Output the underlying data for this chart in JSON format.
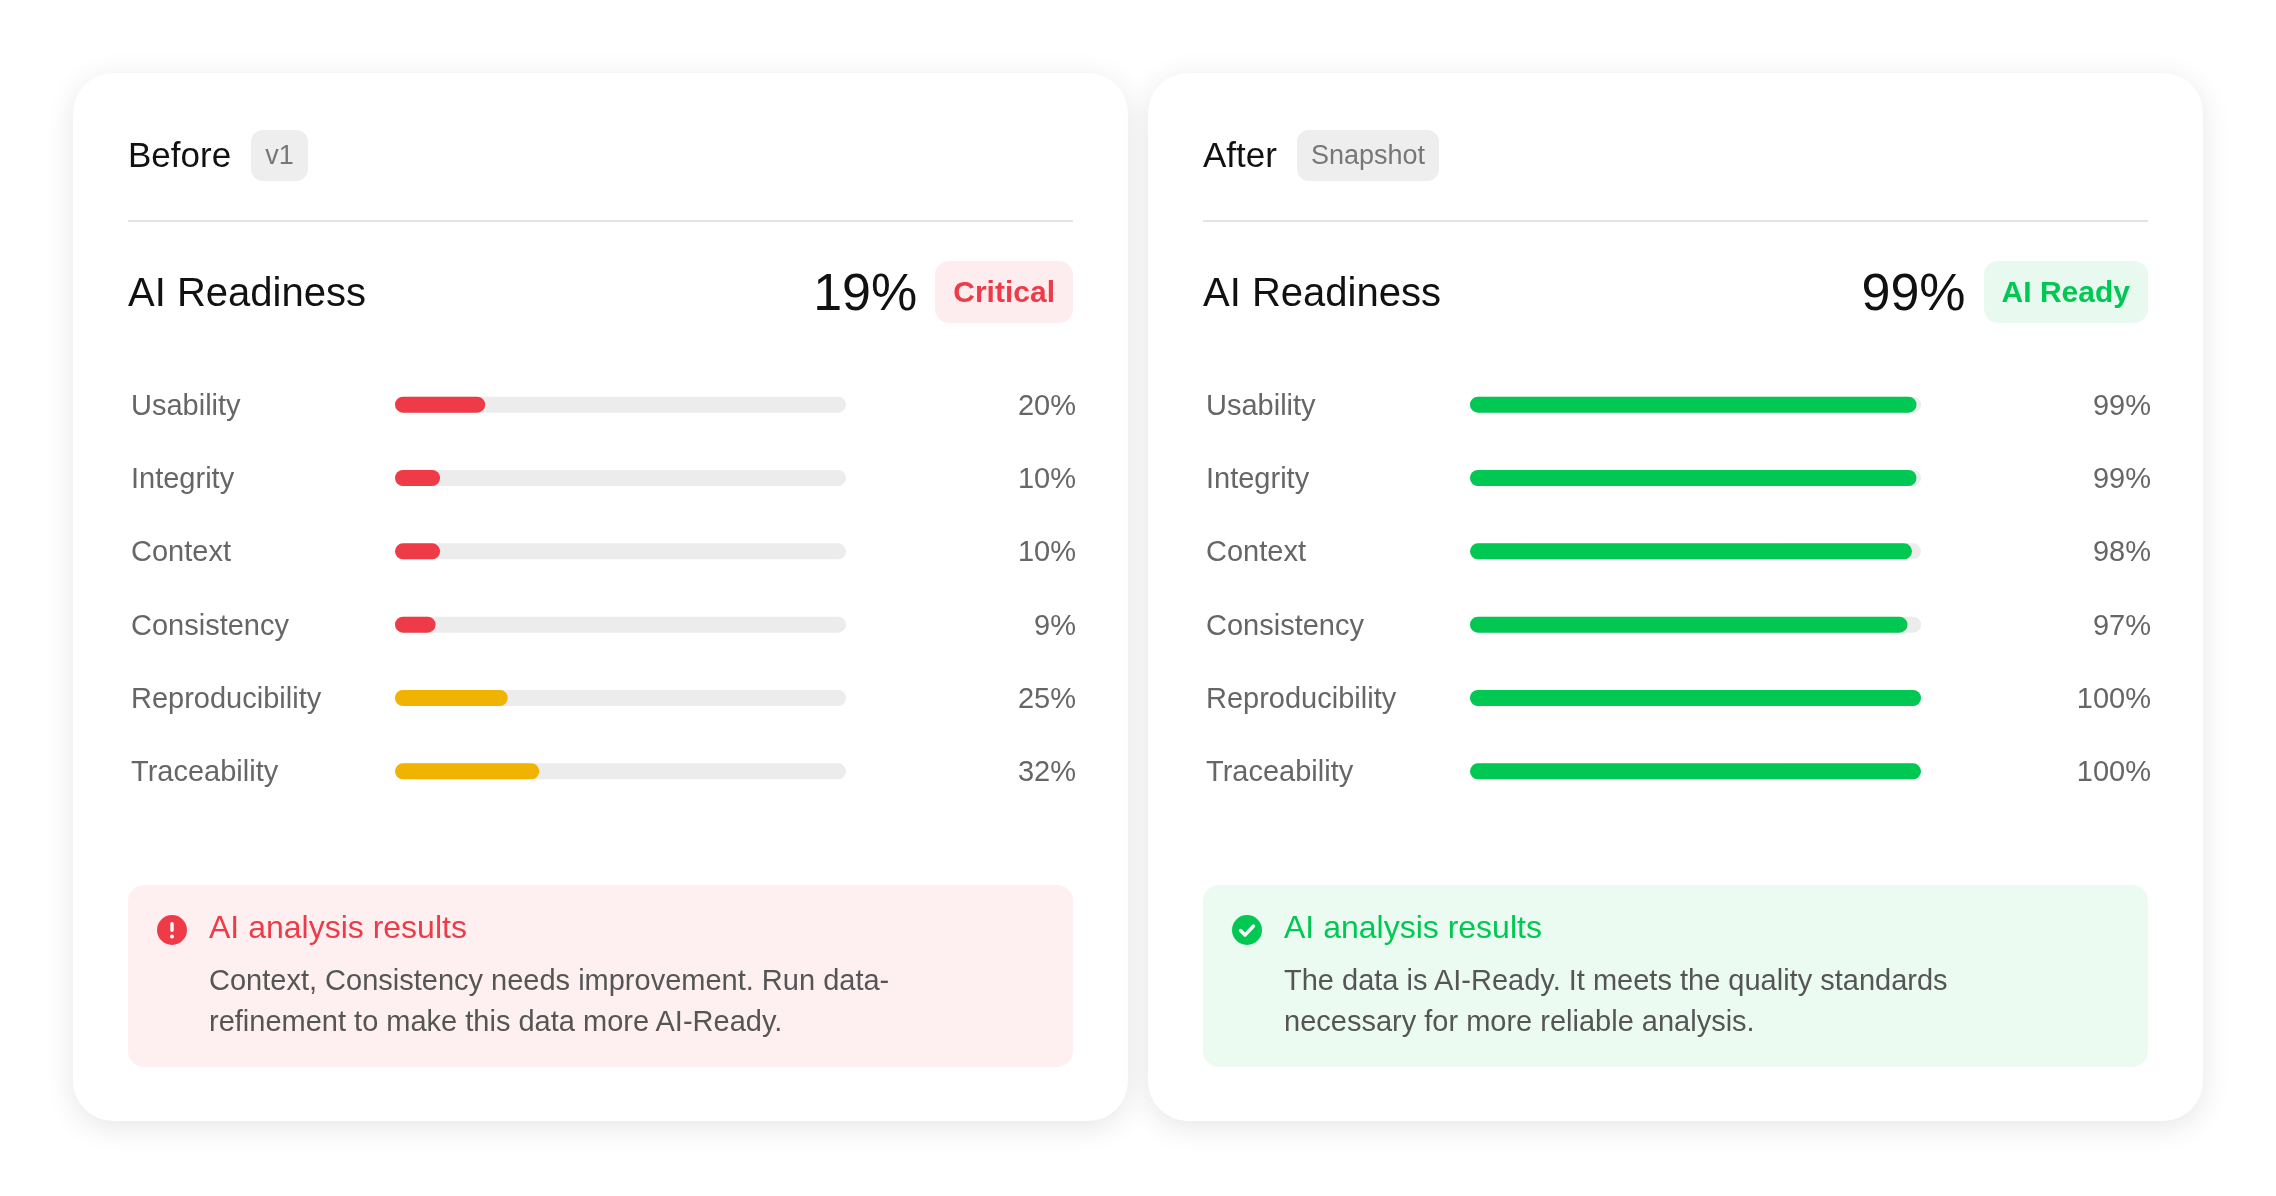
{
  "chart_data": [
    {
      "type": "bar",
      "orientation": "horizontal",
      "title": "Before",
      "subtitle": "v1",
      "categories": [
        "Usability",
        "Integrity",
        "Context",
        "Consistency",
        "Reproducibility",
        "Traceability"
      ],
      "values": [
        20,
        10,
        10,
        9,
        25,
        32
      ],
      "colors": [
        "#ef3b48",
        "#ef3b48",
        "#ef3b48",
        "#ef3b48",
        "#f0b400",
        "#f0b400"
      ],
      "value_labels": [
        "20%",
        "10%",
        "10%",
        "9%",
        "25%",
        "32%"
      ],
      "xlim": [
        0,
        100
      ],
      "tick_labels": false,
      "annotations": [
        "AI Readiness",
        "19%",
        "Critical",
        "AI analysis results",
        "Context, Consistency needs improvement. Run data-refinement to make this data more AI-Ready."
      ]
    },
    {
      "type": "bar",
      "orientation": "horizontal",
      "title": "After",
      "subtitle": "Snapshot",
      "categories": [
        "Usability",
        "Integrity",
        "Context",
        "Consistency",
        "Reproducibility",
        "Traceability"
      ],
      "values": [
        99,
        99,
        98,
        97,
        100,
        100
      ],
      "color": "#00c853",
      "value_labels": [
        "99%",
        "99%",
        "98%",
        "97%",
        "100%",
        "100%"
      ],
      "xlim": [
        0,
        100
      ],
      "tick_labels": false,
      "annotations": [
        "AI Readiness",
        "99%",
        "AI Ready",
        "AI analysis results",
        "The data is AI-Ready. It meets the quality standards necessary for more reliable analysis."
      ]
    }
  ]
}
